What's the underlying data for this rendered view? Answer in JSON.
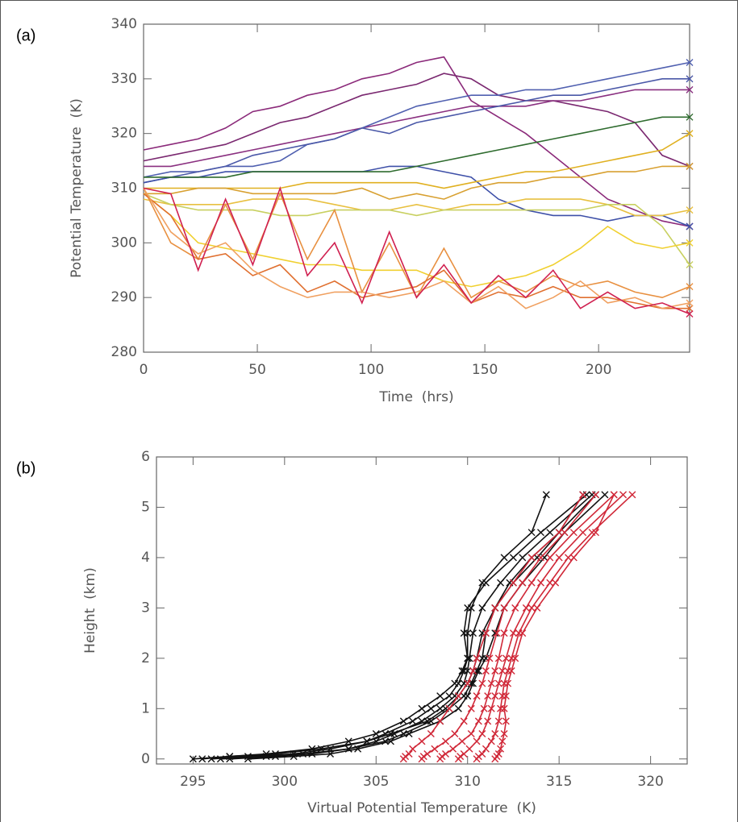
{
  "chart_data": [
    {
      "type": "line",
      "label": "(a)",
      "y_label": "Potential Temperature  (K)",
      "x_label": "Time  (hrs)",
      "x": [
        0,
        12,
        24,
        36,
        48,
        60,
        72,
        84,
        96,
        108,
        120,
        132,
        144,
        156,
        168,
        180,
        192,
        204,
        216,
        228,
        240
      ],
      "xlim": [
        0,
        240
      ],
      "xticks": [
        0,
        50,
        100,
        150,
        200
      ],
      "ylim": [
        280,
        340
      ],
      "yticks": [
        280,
        290,
        300,
        310,
        320,
        330,
        340
      ],
      "marker": "x",
      "marker_at": "last",
      "series": [
        {
          "color": "#8b2a7a",
          "values": [
            317,
            318,
            319,
            321,
            324,
            325,
            327,
            328,
            330,
            331,
            333,
            334,
            326,
            323,
            320,
            316,
            312,
            308,
            306,
            304,
            303
          ]
        },
        {
          "color": "#7a2870",
          "values": [
            315,
            316,
            317,
            318,
            320,
            322,
            323,
            325,
            327,
            328,
            329,
            331,
            330,
            327,
            326,
            326,
            325,
            324,
            322,
            316,
            314
          ]
        },
        {
          "color": "#8a3080",
          "values": [
            314,
            314,
            315,
            316,
            317,
            318,
            319,
            320,
            321,
            322,
            323,
            324,
            325,
            325,
            325,
            326,
            326,
            327,
            328,
            328,
            328
          ]
        },
        {
          "color": "#5060b0",
          "values": [
            312,
            313,
            313,
            314,
            314,
            315,
            318,
            319,
            321,
            323,
            325,
            326,
            327,
            327,
            328,
            328,
            329,
            330,
            331,
            332,
            333
          ]
        },
        {
          "color": "#4a58a8",
          "values": [
            311,
            312,
            313,
            314,
            316,
            317,
            318,
            319,
            321,
            320,
            322,
            323,
            324,
            325,
            326,
            327,
            327,
            328,
            329,
            330,
            330
          ]
        },
        {
          "color": "#3e50a8",
          "values": [
            311,
            312,
            312,
            313,
            313,
            313,
            313,
            313,
            313,
            314,
            314,
            313,
            312,
            308,
            306,
            305,
            305,
            304,
            305,
            305,
            303
          ]
        },
        {
          "color": "#2e6b2e",
          "values": [
            312,
            312,
            312,
            312,
            313,
            313,
            313,
            313,
            313,
            313,
            314,
            315,
            316,
            317,
            318,
            319,
            320,
            321,
            322,
            323,
            323
          ]
        },
        {
          "color": "#e0b020",
          "values": [
            310,
            310,
            310,
            310,
            310,
            310,
            311,
            311,
            311,
            311,
            311,
            310,
            311,
            312,
            313,
            313,
            314,
            315,
            316,
            317,
            320
          ]
        },
        {
          "color": "#d8a030",
          "values": [
            309,
            309,
            310,
            310,
            309,
            309,
            309,
            309,
            310,
            308,
            309,
            308,
            310,
            311,
            311,
            312,
            312,
            313,
            313,
            314,
            314
          ]
        },
        {
          "color": "#e8c040",
          "values": [
            308,
            307,
            307,
            307,
            308,
            308,
            308,
            307,
            306,
            306,
            307,
            306,
            307,
            307,
            308,
            308,
            308,
            307,
            305,
            305,
            306
          ]
        },
        {
          "color": "#c8d060",
          "values": [
            309,
            307,
            306,
            306,
            306,
            305,
            305,
            306,
            306,
            306,
            305,
            306,
            306,
            306,
            306,
            306,
            306,
            307,
            307,
            303,
            296
          ]
        },
        {
          "color": "#f0d030",
          "values": [
            309,
            305,
            300,
            299,
            298,
            297,
            296,
            296,
            295,
            295,
            295,
            293,
            292,
            293,
            294,
            296,
            299,
            303,
            300,
            299,
            300
          ]
        },
        {
          "color": "#e89040",
          "values": [
            310,
            300,
            297,
            307,
            297,
            309,
            297,
            306,
            291,
            300,
            290,
            299,
            290,
            293,
            291,
            294,
            292,
            293,
            291,
            290,
            292
          ]
        },
        {
          "color": "#e07030",
          "values": [
            309,
            305,
            297,
            298,
            294,
            296,
            291,
            293,
            290,
            291,
            292,
            295,
            289,
            291,
            290,
            292,
            290,
            290,
            289,
            288,
            288
          ]
        },
        {
          "color": "#f0a060",
          "values": [
            310,
            302,
            298,
            300,
            295,
            292,
            290,
            291,
            291,
            290,
            291,
            293,
            289,
            292,
            288,
            290,
            293,
            289,
            290,
            288,
            289
          ]
        },
        {
          "color": "#d02050",
          "values": [
            310,
            309,
            295,
            308,
            296,
            310,
            294,
            300,
            289,
            302,
            290,
            296,
            289,
            294,
            290,
            295,
            288,
            291,
            288,
            289,
            287
          ]
        }
      ]
    },
    {
      "type": "line",
      "label": "(b)",
      "y_label": "Height  (km)",
      "x_label": "Virtual Potential Temperature  (K)",
      "xlim": [
        293,
        322
      ],
      "xticks": [
        295,
        300,
        305,
        310,
        315,
        320
      ],
      "ylim": [
        -0.1,
        6
      ],
      "yticks": [
        0,
        1,
        2,
        3,
        4,
        5,
        6
      ],
      "marker": "x",
      "marker_at": "all",
      "series": [
        {
          "color": "#111111",
          "x": [
            295.5,
            297,
            299,
            301.5,
            303.5,
            305,
            306.5,
            307.5,
            308.5,
            309.3,
            309.7,
            310,
            310,
            310.2,
            310.8,
            312,
            313.5,
            314.3
          ],
          "values": [
            0,
            0.05,
            0.1,
            0.2,
            0.35,
            0.5,
            0.75,
            1,
            1.25,
            1.5,
            1.75,
            2,
            2.5,
            3,
            3.5,
            4,
            4.5,
            5.25
          ]
        },
        {
          "color": "#111111",
          "x": [
            296,
            298,
            300.5,
            302.5,
            304.5,
            305.5,
            307,
            308,
            309,
            309.5,
            309.8,
            310,
            309.8,
            310,
            311,
            312.5,
            314,
            316.5
          ],
          "values": [
            0,
            0.05,
            0.1,
            0.2,
            0.35,
            0.5,
            0.75,
            1,
            1.25,
            1.5,
            1.75,
            2,
            2.5,
            3,
            3.5,
            4,
            4.5,
            5.25
          ]
        },
        {
          "color": "#111111",
          "x": [
            297,
            299.5,
            301.5,
            303.5,
            305,
            306,
            307.5,
            308.5,
            309.3,
            309.8,
            310,
            310.1,
            310.3,
            310.8,
            311.8,
            313,
            314.5,
            316.8
          ],
          "values": [
            0,
            0.05,
            0.1,
            0.2,
            0.35,
            0.5,
            0.75,
            1,
            1.25,
            1.5,
            1.75,
            2,
            2.5,
            3,
            3.5,
            4,
            4.5,
            5.25
          ]
        },
        {
          "color": "#111111",
          "x": [
            295,
            297,
            299.5,
            302,
            304.5,
            305.8,
            307.8,
            308.8,
            309.5,
            310,
            310.3,
            310.5,
            310.8,
            311.5,
            312.5,
            313.8,
            315,
            317
          ],
          "values": [
            0,
            0.05,
            0.1,
            0.2,
            0.35,
            0.5,
            0.75,
            1,
            1.25,
            1.5,
            1.75,
            2,
            2.5,
            3,
            3.5,
            4,
            4.5,
            5.25
          ]
        },
        {
          "color": "#111111",
          "x": [
            296.5,
            299,
            301,
            303.5,
            305.5,
            306.5,
            308,
            309,
            309.8,
            310.2,
            310.5,
            310.8,
            311,
            311.5,
            312.3,
            313.5,
            315,
            316.3
          ],
          "values": [
            0,
            0.05,
            0.1,
            0.2,
            0.35,
            0.5,
            0.75,
            1,
            1.25,
            1.5,
            1.75,
            2,
            2.5,
            3,
            3.5,
            4,
            4.5,
            5.25
          ]
        },
        {
          "color": "#111111",
          "x": [
            298,
            300.5,
            302.5,
            304,
            305.8,
            306.8,
            308.5,
            309.5,
            310,
            310.3,
            310.6,
            311,
            311.5,
            312,
            313,
            314.2,
            315.3,
            317.5
          ],
          "values": [
            0,
            0.05,
            0.1,
            0.2,
            0.35,
            0.5,
            0.75,
            1,
            1.25,
            1.5,
            1.75,
            2,
            2.5,
            3,
            3.5,
            4,
            4.5,
            5.25
          ]
        },
        {
          "color": "#d02838",
          "x": [
            306.5,
            306.6,
            306.8,
            307,
            307.5,
            308,
            308.5,
            309,
            309.5,
            310,
            310.3,
            310.5,
            311,
            311.5,
            312.5,
            313.5,
            315,
            316.3
          ],
          "values": [
            0,
            0.05,
            0.1,
            0.2,
            0.35,
            0.5,
            0.75,
            1,
            1.25,
            1.5,
            1.75,
            2,
            2.5,
            3,
            3.5,
            4,
            4.5,
            5.25
          ]
        },
        {
          "color": "#d02838",
          "x": [
            307.5,
            307.6,
            307.8,
            308.2,
            308.8,
            309.3,
            309.8,
            310.2,
            310.5,
            310.8,
            311,
            311.2,
            311.6,
            312,
            313,
            314,
            315.3,
            317
          ],
          "values": [
            0,
            0.05,
            0.1,
            0.2,
            0.35,
            0.5,
            0.75,
            1,
            1.25,
            1.5,
            1.75,
            2,
            2.5,
            3,
            3.5,
            4,
            4.5,
            5.25
          ]
        },
        {
          "color": "#d02838",
          "x": [
            308.5,
            308.6,
            308.8,
            309.2,
            309.7,
            310.2,
            310.6,
            310.9,
            311.1,
            311.3,
            311.5,
            311.7,
            312,
            312.6,
            313.5,
            314.5,
            315.8,
            318
          ],
          "values": [
            0,
            0.05,
            0.1,
            0.2,
            0.35,
            0.5,
            0.75,
            1,
            1.25,
            1.5,
            1.75,
            2,
            2.5,
            3,
            3.5,
            4,
            4.5,
            5.25
          ]
        },
        {
          "color": "#d02838",
          "x": [
            309.5,
            309.6,
            309.8,
            310.1,
            310.5,
            310.8,
            311.1,
            311.3,
            311.5,
            311.7,
            311.9,
            312.1,
            312.5,
            313.2,
            314,
            315,
            316.3,
            318.5
          ],
          "values": [
            0,
            0.05,
            0.1,
            0.2,
            0.35,
            0.5,
            0.75,
            1,
            1.25,
            1.5,
            1.75,
            2,
            2.5,
            3,
            3.5,
            4,
            4.5,
            5.25
          ]
        },
        {
          "color": "#d02838",
          "x": [
            310.5,
            310.6,
            310.8,
            311,
            311.3,
            311.5,
            311.7,
            311.8,
            311.9,
            312,
            312.2,
            312.4,
            312.8,
            313.5,
            314.5,
            315.5,
            316.8,
            319
          ],
          "values": [
            0,
            0.05,
            0.1,
            0.2,
            0.35,
            0.5,
            0.75,
            1,
            1.25,
            1.5,
            1.75,
            2,
            2.5,
            3,
            3.5,
            4,
            4.5,
            5.25
          ]
        },
        {
          "color": "#d02838",
          "x": [
            311.5,
            311.6,
            311.7,
            311.8,
            311.9,
            312,
            312.1,
            312,
            312.1,
            312.2,
            312.4,
            312.6,
            313,
            313.8,
            314.8,
            315.8,
            317,
            318
          ],
          "values": [
            0,
            0.05,
            0.1,
            0.2,
            0.35,
            0.5,
            0.75,
            1,
            1.25,
            1.5,
            1.75,
            2,
            2.5,
            3,
            3.5,
            4,
            4.5,
            5.25
          ]
        }
      ]
    }
  ]
}
